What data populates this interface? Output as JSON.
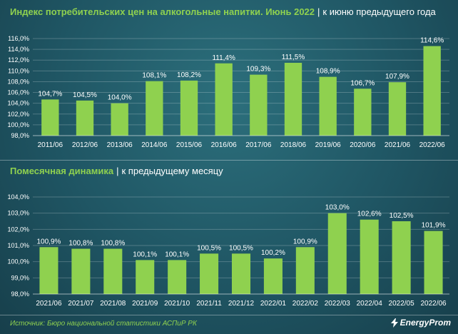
{
  "header": {
    "title": "Индекс потребительских цен на алкогольные напитки. Июнь 2022",
    "subtitle": "к июню предыдущего года"
  },
  "section2": {
    "title": "Помесячная динамика",
    "subtitle": "к предыдущему месяцу"
  },
  "footer": {
    "source": "Источник: Бюро национальной статистики АСПиР РК",
    "logo_text": "EnergyProm",
    "logo_icon": "lightning-icon"
  },
  "colors": {
    "bar": "#8fd14f",
    "accent_text": "#8fd14f",
    "background": "#1f5563"
  },
  "chart_data": [
    {
      "type": "bar",
      "categories": [
        "2011/06",
        "2012/06",
        "2013/06",
        "2014/06",
        "2015/06",
        "2016/06",
        "2017/06",
        "2018/06",
        "2019/06",
        "2020/06",
        "2021/06",
        "2022/06"
      ],
      "values": [
        104.7,
        104.5,
        104.0,
        108.1,
        108.2,
        111.4,
        109.3,
        111.5,
        108.9,
        106.7,
        107.9,
        114.6
      ],
      "value_labels": [
        "104,7%",
        "104,5%",
        "104,0%",
        "108,1%",
        "108,2%",
        "111,4%",
        "109,3%",
        "111,5%",
        "108,9%",
        "106,7%",
        "107,9%",
        "114,6%"
      ],
      "yticks": [
        98,
        100,
        102,
        104,
        106,
        108,
        110,
        112,
        114,
        116
      ],
      "ytick_labels": [
        "98,0%",
        "100,0%",
        "102,0%",
        "104,0%",
        "106,0%",
        "108,0%",
        "110,0%",
        "112,0%",
        "114,0%",
        "116,0%"
      ],
      "ylim": [
        98,
        116
      ],
      "grid": true
    },
    {
      "type": "bar",
      "categories": [
        "2021/06",
        "2021/07",
        "2021/08",
        "2021/09",
        "2021/10",
        "2021/11",
        "2021/12",
        "2022/01",
        "2022/02",
        "2022/03",
        "2022/04",
        "2022/05",
        "2022/06"
      ],
      "values": [
        100.9,
        100.8,
        100.8,
        100.1,
        100.1,
        100.5,
        100.5,
        100.2,
        100.9,
        103.0,
        102.6,
        102.5,
        101.9
      ],
      "value_labels": [
        "100,9%",
        "100,8%",
        "100,8%",
        "100,1%",
        "100,1%",
        "100,5%",
        "100,5%",
        "100,2%",
        "100,9%",
        "103,0%",
        "102,6%",
        "102,5%",
        "101,9%"
      ],
      "yticks": [
        98,
        99,
        100,
        101,
        102,
        103,
        104
      ],
      "ytick_labels": [
        "98,0%",
        "99,0%",
        "100,0%",
        "101,0%",
        "102,0%",
        "103,0%",
        "104,0%"
      ],
      "ylim": [
        98,
        104
      ],
      "grid": true
    }
  ]
}
